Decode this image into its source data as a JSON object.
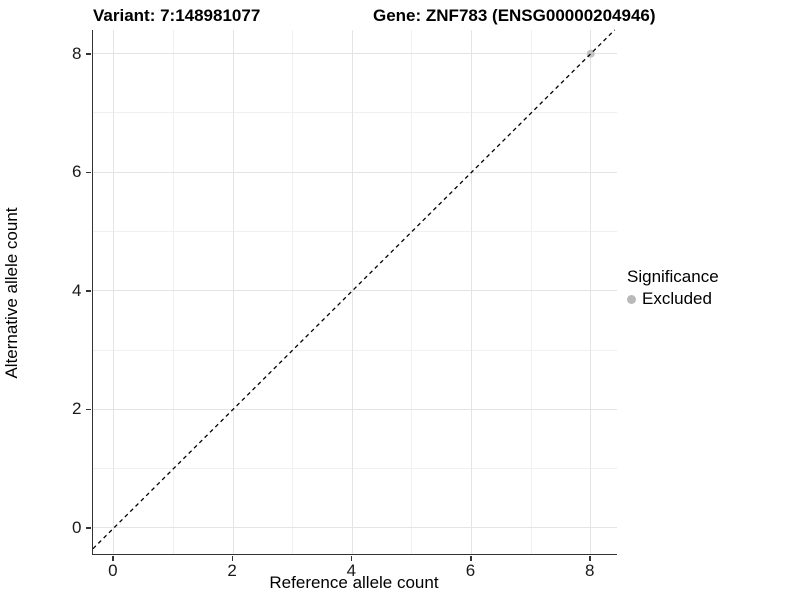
{
  "titles": {
    "left": "Variant: 7:148981077",
    "right": "Gene: ZNF783 (ENSG00000204946)"
  },
  "chart_data": {
    "type": "scatter",
    "xlabel": "Reference allele count",
    "ylabel": "Alternative allele count",
    "x_ticks": [
      0,
      2,
      4,
      6,
      8
    ],
    "y_ticks": [
      0,
      2,
      4,
      6,
      8
    ],
    "x_minor": [
      1,
      3,
      5,
      7
    ],
    "y_minor": [
      1,
      3,
      5,
      7
    ],
    "xlim": [
      -0.35,
      8.44
    ],
    "ylim": [
      -0.44,
      8.4
    ],
    "grid": "major+minor",
    "series": [
      {
        "name": "Excluded",
        "color": "#c3c3c3",
        "points": [
          {
            "x": 8,
            "y": 8
          }
        ]
      }
    ],
    "reference_line": {
      "type": "identity y=x",
      "style": "dashed",
      "color": "#000000"
    },
    "legend": {
      "position": "right",
      "title": "Significance",
      "items": [
        {
          "label": "Excluded",
          "color": "#b9b9b9"
        }
      ]
    }
  },
  "colors": {
    "grid_major": "#e4e4e4",
    "grid_minor": "#f0f0f0",
    "axis_line": "#333333",
    "point": "#c3c3c3"
  }
}
